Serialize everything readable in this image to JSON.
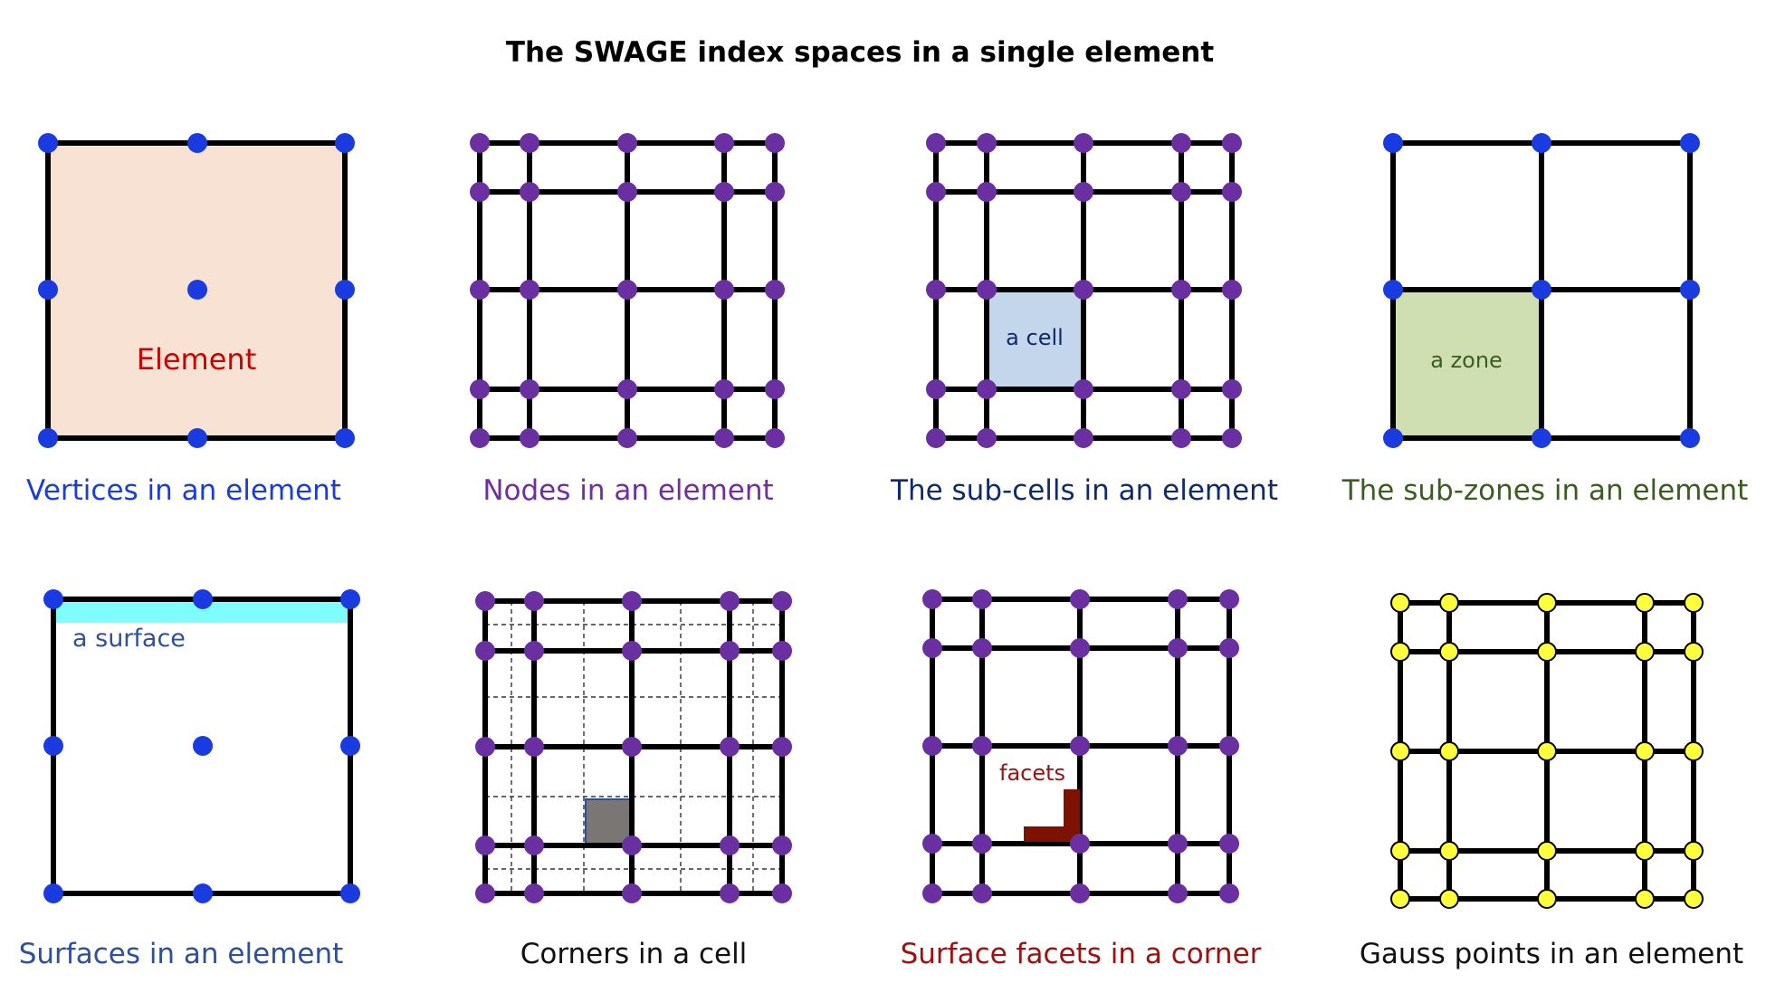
{
  "title": "The SWAGE index spaces in a single element",
  "colors": {
    "vertex": "#1a3be0",
    "node": "#6a2fa1",
    "gauss_fill": "#ffff3c",
    "gauss_stroke": "#8a7a00",
    "line": "#000000",
    "element_fill": "#f7e2d3",
    "cell_fill": "#c3d6ec",
    "zone_fill": "#cfdfb2",
    "surface_fill": "#7ffdfd",
    "corner_fill": "#7a7674",
    "corner_stroke": "#2a4fa0",
    "facet_fill": "#7d1200"
  },
  "panels": [
    {
      "id": "vertices",
      "caption": "Vertices in an element",
      "caption_color": "#1a3be0",
      "inner_label": "Element",
      "inner_label_color": "#cc0000",
      "point_kind": "vertex"
    },
    {
      "id": "nodes",
      "caption": "Nodes in an element",
      "caption_color": "#6f2fa3",
      "point_kind": "node"
    },
    {
      "id": "subcells",
      "caption": "The sub-cells in an element",
      "caption_color": "#102a6b",
      "inner_label": "a cell",
      "inner_label_color": "#102a6b",
      "point_kind": "node"
    },
    {
      "id": "subzones",
      "caption": "The sub-zones in an element",
      "caption_color": "#3c5d22",
      "inner_label": "a zone",
      "inner_label_color": "#3c5d22",
      "point_kind": "vertex"
    },
    {
      "id": "surfaces",
      "caption": "Surfaces in an element",
      "caption_color": "#2f4f9c",
      "inner_label": "a surface",
      "inner_label_color": "#2f4f9c",
      "point_kind": "vertex"
    },
    {
      "id": "corners",
      "caption": "Corners in a cell",
      "caption_color": "#111111",
      "point_kind": "node"
    },
    {
      "id": "facets",
      "caption": "Surface facets in a corner",
      "caption_color": "#a01010",
      "inner_label": "facets",
      "inner_label_color": "#a01010",
      "point_kind": "node"
    },
    {
      "id": "gauss",
      "caption": "Gauss points in an element",
      "caption_color": "#111111",
      "point_kind": "gauss"
    }
  ]
}
